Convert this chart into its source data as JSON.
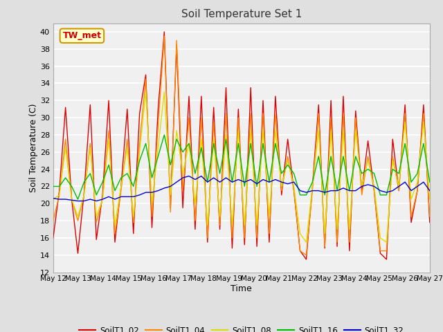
{
  "title": "Soil Temperature Set 1",
  "xlabel": "Time",
  "ylabel": "Soil Temperature (C)",
  "ylim": [
    12,
    41
  ],
  "yticks": [
    12,
    14,
    16,
    18,
    20,
    22,
    24,
    26,
    28,
    30,
    32,
    34,
    36,
    38,
    40
  ],
  "figure_bg": "#e0e0e0",
  "plot_bg": "#f0f0f0",
  "annotation_text": "TW_met",
  "annotation_bg": "#ffffcc",
  "annotation_border": "#cc9900",
  "annotation_text_color": "#cc0000",
  "series_colors": {
    "SoilT1_02": "#dd0000",
    "SoilT1_04": "#ff8800",
    "SoilT1_08": "#dddd00",
    "SoilT1_16": "#00bb00",
    "SoilT1_32": "#0000cc"
  },
  "x_start_day": 12,
  "x_end_day": 27,
  "xtick_days": [
    12,
    13,
    14,
    15,
    16,
    17,
    18,
    19,
    20,
    21,
    22,
    23,
    24,
    25,
    26,
    27
  ],
  "SoilT1_02": [
    16.0,
    21.5,
    31.2,
    20.5,
    14.2,
    21.2,
    31.5,
    15.8,
    21.0,
    32.0,
    15.5,
    22.0,
    31.0,
    16.5,
    30.5,
    35.0,
    17.2,
    31.0,
    40.0,
    19.5,
    38.5,
    19.5,
    32.5,
    17.0,
    32.5,
    15.5,
    31.2,
    17.0,
    33.5,
    14.8,
    31.0,
    15.2,
    33.5,
    15.0,
    32.0,
    15.5,
    32.5,
    21.0,
    27.5,
    21.5,
    14.5,
    13.5,
    22.0,
    31.5,
    14.8,
    32.0,
    15.0,
    32.5,
    14.5,
    30.8,
    21.5,
    27.3,
    21.5,
    14.2,
    13.5,
    27.5,
    21.5,
    31.5,
    17.8,
    21.5,
    31.5,
    17.8
  ],
  "SoilT1_04": [
    18.0,
    21.0,
    27.5,
    20.5,
    18.0,
    21.0,
    27.0,
    17.8,
    20.5,
    28.5,
    16.5,
    21.5,
    27.5,
    17.8,
    27.0,
    34.5,
    18.5,
    29.0,
    39.5,
    19.0,
    39.0,
    21.5,
    30.0,
    18.0,
    30.0,
    16.0,
    29.5,
    17.5,
    30.5,
    16.0,
    30.0,
    16.0,
    30.5,
    16.0,
    30.5,
    16.5,
    30.5,
    21.5,
    25.5,
    21.5,
    14.5,
    14.0,
    21.5,
    30.5,
    15.0,
    30.0,
    15.5,
    30.5,
    15.5,
    30.0,
    21.0,
    25.5,
    21.5,
    14.5,
    14.5,
    25.5,
    21.5,
    30.5,
    18.5,
    21.5,
    30.5,
    18.5
  ],
  "SoilT1_08": [
    20.5,
    21.0,
    26.5,
    20.5,
    18.5,
    21.0,
    26.5,
    18.5,
    20.5,
    27.5,
    17.5,
    22.0,
    26.5,
    18.5,
    26.0,
    33.0,
    20.0,
    26.5,
    33.0,
    21.0,
    28.5,
    23.5,
    27.0,
    20.0,
    27.5,
    17.5,
    27.5,
    18.5,
    28.0,
    17.5,
    28.5,
    17.5,
    28.5,
    17.5,
    28.5,
    18.5,
    28.5,
    22.0,
    25.0,
    22.0,
    16.5,
    15.5,
    22.0,
    28.5,
    16.5,
    28.5,
    17.0,
    28.5,
    17.0,
    28.5,
    22.0,
    25.0,
    22.0,
    16.0,
    15.5,
    25.0,
    22.0,
    29.5,
    20.5,
    22.5,
    29.5,
    20.5
  ],
  "SoilT1_16": [
    22.0,
    22.0,
    23.0,
    22.0,
    20.5,
    22.5,
    23.5,
    21.0,
    22.5,
    24.5,
    21.5,
    23.0,
    23.5,
    22.0,
    25.0,
    27.0,
    23.0,
    25.5,
    28.0,
    24.5,
    27.5,
    26.0,
    27.0,
    23.5,
    26.5,
    22.5,
    27.0,
    23.5,
    27.5,
    22.5,
    27.0,
    22.0,
    27.0,
    22.0,
    27.0,
    22.5,
    27.0,
    23.5,
    24.5,
    23.5,
    21.0,
    21.0,
    22.5,
    25.5,
    21.0,
    25.5,
    21.5,
    25.5,
    21.5,
    25.5,
    23.5,
    24.0,
    23.5,
    21.0,
    21.0,
    24.0,
    23.5,
    27.0,
    22.5,
    23.5,
    27.0,
    22.5
  ],
  "SoilT1_32": [
    20.6,
    20.5,
    20.5,
    20.4,
    20.3,
    20.3,
    20.5,
    20.3,
    20.5,
    20.8,
    20.5,
    20.8,
    20.8,
    20.8,
    21.0,
    21.3,
    21.3,
    21.5,
    21.8,
    22.0,
    22.5,
    23.0,
    23.2,
    22.8,
    23.2,
    22.5,
    23.0,
    22.5,
    23.0,
    22.5,
    22.8,
    22.5,
    22.8,
    22.3,
    22.8,
    22.5,
    22.8,
    22.5,
    22.3,
    22.5,
    21.5,
    21.3,
    21.5,
    21.5,
    21.3,
    21.5,
    21.5,
    21.8,
    21.5,
    21.5,
    22.0,
    22.2,
    22.0,
    21.5,
    21.3,
    21.5,
    22.0,
    22.5,
    21.5,
    22.0,
    22.5,
    21.5
  ]
}
